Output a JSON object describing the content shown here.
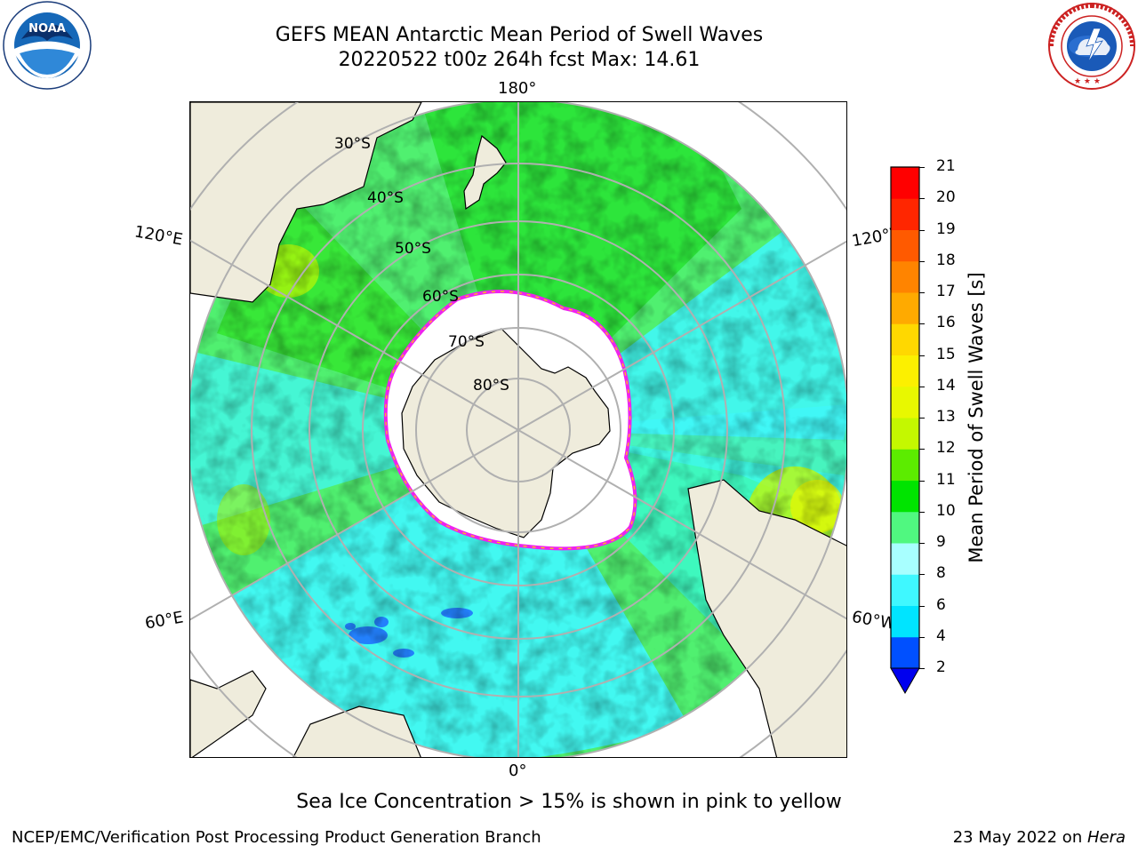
{
  "title": {
    "line1": "GEFS MEAN Antarctic Mean Period of Swell Waves",
    "line2": "20220522 t00z 264h fcst   Max: 14.61"
  },
  "logos": {
    "noaa_text": "NOAA",
    "noaa_ring": "NATIONAL OCEANIC AND ATMOSPHERIC ADMINISTRATION · U.S. DEPARTMENT OF COMMERCE",
    "nws_ring": "NATIONAL WEATHER SERVICE"
  },
  "map": {
    "projection": "south polar stereographic",
    "longitude_labels": {
      "top": "180°",
      "bottom": "0°",
      "left_upper": "120°E",
      "left_lower": "60°E",
      "right_upper": "120°W",
      "right_lower": "60°W"
    },
    "latitude_labels": [
      "30°S",
      "40°S",
      "50°S",
      "60°S",
      "70°S",
      "80°S"
    ],
    "colors": {
      "land": "#efecdc",
      "sea_ice": "#ffffff",
      "ice_edge": "#ee22ee",
      "grid": "#b0b0b0"
    }
  },
  "colorbar": {
    "label": "Mean Period of Swell Waves [s]",
    "ticks": [
      "2",
      "4",
      "6",
      "8",
      "9",
      "10",
      "11",
      "12",
      "13",
      "14",
      "15",
      "16",
      "17",
      "18",
      "19",
      "20",
      "21"
    ],
    "colors": [
      "#0050ff",
      "#00e4ff",
      "#3ff8ff",
      "#a8ffff",
      "#50f880",
      "#00e400",
      "#5cec00",
      "#c4f800",
      "#e8f800",
      "#fcf000",
      "#ffd800",
      "#ffaa00",
      "#ff8400",
      "#ff5a00",
      "#ff2600",
      "#ff0000"
    ],
    "extend_color": "#0000ee"
  },
  "caption": "Sea Ice Concentration > 15% is shown in pink to yellow",
  "footer": {
    "left": "NCEP/EMC/Verification Post Processing Product Generation Branch",
    "right_date": "23 May 2022 on ",
    "right_machine": "Hera"
  }
}
